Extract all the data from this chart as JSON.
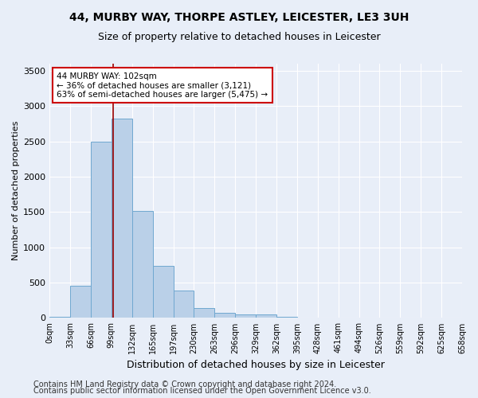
{
  "title_line1": "44, MURBY WAY, THORPE ASTLEY, LEICESTER, LE3 3UH",
  "title_line2": "Size of property relative to detached houses in Leicester",
  "xlabel": "Distribution of detached houses by size in Leicester",
  "ylabel": "Number of detached properties",
  "footer_line1": "Contains HM Land Registry data © Crown copyright and database right 2024.",
  "footer_line2": "Contains public sector information licensed under the Open Government Licence v3.0.",
  "bar_values": [
    20,
    460,
    2500,
    2820,
    1510,
    740,
    390,
    145,
    70,
    50,
    50,
    20,
    0,
    0,
    0,
    0,
    0,
    0,
    0,
    0
  ],
  "bin_labels": [
    "0sqm",
    "33sqm",
    "66sqm",
    "99sqm",
    "132sqm",
    "165sqm",
    "197sqm",
    "230sqm",
    "263sqm",
    "296sqm",
    "329sqm",
    "362sqm",
    "395sqm",
    "428sqm",
    "461sqm",
    "494sqm",
    "526sqm",
    "559sqm",
    "592sqm",
    "625sqm",
    "658sqm"
  ],
  "bar_color": "#bad0e8",
  "bar_edge_color": "#6fa8d0",
  "background_color": "#e8eef8",
  "grid_color": "#ffffff",
  "annotation_text": "44 MURBY WAY: 102sqm\n← 36% of detached houses are smaller (3,121)\n63% of semi-detached houses are larger (5,475) →",
  "annotation_box_color": "#ffffff",
  "annotation_box_edge": "#cc0000",
  "property_line_x": 3.1,
  "property_line_color": "#990000",
  "ylim": [
    0,
    3600
  ],
  "yticks": [
    0,
    500,
    1000,
    1500,
    2000,
    2500,
    3000,
    3500
  ],
  "title_fontsize": 10,
  "subtitle_fontsize": 9,
  "ylabel_fontsize": 8,
  "xlabel_fontsize": 9,
  "tick_fontsize": 8,
  "xtick_fontsize": 7,
  "footer_fontsize": 7
}
